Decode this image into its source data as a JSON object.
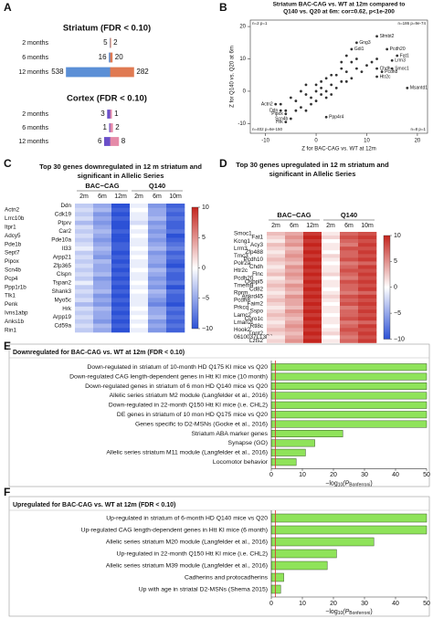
{
  "panel_labels": [
    "A",
    "B",
    "C",
    "D",
    "E",
    "F"
  ],
  "chart_data": [
    {
      "type": "diverging_bar",
      "title": "Striatum (FDR < 0.10)",
      "categories": [
        "2 months",
        "6 months",
        "12 months"
      ],
      "series": [
        {
          "color": "#5b8fd6",
          "values": [
            5,
            16,
            538
          ]
        },
        {
          "color": "#e07a52",
          "values": [
            2,
            20,
            282
          ]
        }
      ]
    },
    {
      "type": "diverging_bar",
      "title": "Cortex (FDR < 0.10)",
      "categories": [
        "2 months",
        "6 months",
        "12 months"
      ],
      "series": [
        {
          "color": "#6a4fc9",
          "values": [
            3,
            1,
            6
          ]
        },
        {
          "color": "#e58aa8",
          "values": [
            1,
            2,
            8
          ]
        }
      ]
    },
    {
      "type": "scatter",
      "title": "Striatum BAC-CAG vs. WT at 12m compared to",
      "subtitle": "Q140 vs. Q20 at 6m:   cor=0.62, p<1e-200",
      "x_label": "Z for BAC-CAG vs. WT at 12m",
      "y_label": "Z for Q140 vs. Q20 at 6m",
      "xlim": [
        -13,
        22
      ],
      "ylim": [
        -13,
        22
      ],
      "xticks": [
        -10,
        0,
        10,
        20
      ],
      "yticks": [
        -10,
        0,
        10,
        20
      ],
      "color": "#333333",
      "annotations": [
        "n=2  p=1",
        "n=186  p=9e-74",
        "n=402  p=6e-150",
        "n=8  p=1"
      ],
      "series": [
        {
          "x": [
            -4,
            -3,
            -2,
            -1,
            0,
            1,
            2,
            3,
            4,
            5,
            6,
            7,
            8,
            -5,
            -6,
            2,
            3,
            1,
            -2,
            -3,
            4,
            5,
            6,
            7,
            9,
            10,
            -1,
            0,
            2,
            3,
            -4,
            1,
            0,
            8,
            11,
            -7,
            5,
            6,
            -2,
            12
          ],
          "y": [
            -3,
            -5,
            -1,
            -2,
            0,
            1,
            0,
            2,
            5,
            3,
            6,
            4,
            7,
            -2,
            -6,
            4,
            -1,
            3,
            2,
            0,
            1,
            7,
            3,
            9,
            6,
            8,
            -4,
            -3,
            -2,
            5,
            -6,
            -1,
            2,
            10,
            9,
            -4,
            9,
            11,
            -6,
            10
          ]
        },
        {
          "x": [
            12,
            14,
            8,
            7,
            16,
            15,
            12,
            15,
            13,
            12,
            18,
            -8,
            -7,
            -6,
            -5,
            -6,
            2
          ],
          "y": [
            17,
            13,
            15,
            13,
            11,
            9.5,
            7,
            7,
            6,
            4.5,
            1,
            -4,
            -6,
            -7,
            -8.5,
            -9.5,
            -8
          ],
          "labels": [
            "Sfmbt2",
            "Pcdh20",
            "Gng3",
            "Gdi1",
            "Fat1",
            "Lrrn3",
            "Chdh",
            "Smoc1",
            "Pcdh8",
            "Htr2c",
            "Msantd1",
            "Actn2",
            "Ddn",
            "Pipox",
            "Scn4b",
            "Hrk",
            "Ppp4r4"
          ]
        }
      ]
    },
    {
      "type": "heatmap",
      "title": [
        "Top 30 genes downregulated in 12 m striatum and",
        "significant in Allelic Series"
      ],
      "groups": [
        "BAC−CAG",
        "Q140"
      ],
      "columns": [
        "2m",
        "6m",
        "12m",
        "2m",
        "6m",
        "10m"
      ],
      "rows": [
        "Ddn",
        "Actn2",
        "Cdk19",
        "Lrrc10b",
        "Ptprv",
        "Itpr1",
        "Car2",
        "Adcy5",
        "Pde10a",
        "Pde1b",
        "Il33",
        "Sept7",
        "Arpp21",
        "Pipox",
        "Zfp365",
        "Scn4b",
        "Clspn",
        "Pcp4",
        "Tspan2",
        "Ppp1r1b",
        "Shank3",
        "Tlk1",
        "Myo5c",
        "Penk",
        "Hrk",
        "Ivns1abp",
        "Arpp19",
        "Anks1b",
        "Cd59a",
        "Rin1"
      ],
      "values": [
        [
          -3,
          -5,
          -10,
          -1,
          -6,
          -9
        ],
        [
          -2,
          -4,
          -9,
          0,
          -5,
          -8
        ],
        [
          -3,
          -6,
          -10,
          -1,
          -5,
          -9
        ],
        [
          -2,
          -5,
          -9,
          -1,
          -4,
          -8
        ],
        [
          -4,
          -6,
          -10,
          -2,
          -6,
          -9
        ],
        [
          -2,
          -5,
          -10,
          0,
          -5,
          -9
        ],
        [
          -3,
          -4,
          -9,
          -1,
          -6,
          -8
        ],
        [
          -2,
          -5,
          -10,
          0,
          -5,
          -10
        ],
        [
          -3,
          -6,
          -10,
          -1,
          -6,
          -9
        ],
        [
          -2,
          -5,
          -9,
          -1,
          -5,
          -8
        ],
        [
          -1,
          -4,
          -9,
          0,
          -4,
          -7
        ],
        [
          -3,
          -5,
          -10,
          -1,
          -6,
          -9
        ],
        [
          -2,
          -6,
          -9,
          0,
          -5,
          -8
        ],
        [
          -3,
          -4,
          -10,
          -1,
          -5,
          -9
        ],
        [
          -2,
          -5,
          -9,
          -1,
          -6,
          -10
        ],
        [
          -3,
          -5,
          -10,
          0,
          -4,
          -8
        ],
        [
          -2,
          -4,
          -9,
          -1,
          -5,
          -9
        ],
        [
          -3,
          -6,
          -10,
          -1,
          -6,
          -9
        ],
        [
          -1,
          -5,
          -9,
          0,
          -5,
          -8
        ],
        [
          -3,
          -5,
          -10,
          -1,
          -6,
          -10
        ],
        [
          -2,
          -4,
          -9,
          0,
          -4,
          -8
        ],
        [
          -3,
          -6,
          -10,
          -1,
          -5,
          -9
        ],
        [
          -2,
          -5,
          -9,
          -1,
          -6,
          -9
        ],
        [
          -4,
          -6,
          -10,
          -1,
          -7,
          -10
        ],
        [
          -2,
          -4,
          -9,
          0,
          -5,
          -8
        ],
        [
          -3,
          -5,
          -10,
          -1,
          -5,
          -9
        ],
        [
          -2,
          -5,
          -9,
          0,
          -4,
          -8
        ],
        [
          -3,
          -6,
          -10,
          -1,
          -6,
          -9
        ],
        [
          -2,
          -4,
          -9,
          0,
          -5,
          -8
        ],
        [
          -3,
          -5,
          -10,
          -1,
          -6,
          -9
        ]
      ],
      "clim": [
        -10,
        10
      ],
      "cticks": [
        10,
        5,
        0,
        {
          "value": -5,
          "label": "−5"
        },
        {
          "value": -10,
          "label": "−10"
        }
      ],
      "colors": [
        "#2c51d6",
        "#ffffff",
        "#c4241d"
      ]
    },
    {
      "type": "heatmap",
      "title": [
        "Top 30 genes upregulated in 12 m striatum and",
        "significant in Allelic Series"
      ],
      "groups": [
        "BAC−CAG",
        "Q140"
      ],
      "columns": [
        "2m",
        "6m",
        "12m",
        "2m",
        "6m",
        "10m"
      ],
      "rows": [
        "Smoc1",
        "Fat1",
        "Kcng1",
        "Acy3",
        "Lrrn3",
        "Zfp488",
        "Tmc3",
        "Pcdh10",
        "Polr2a",
        "Chdh",
        "Htr2c",
        "Flnc",
        "Pcdh20",
        "Osbpl5",
        "Tmem9",
        "Cd82",
        "Rprm",
        "Ankrd45",
        "Pcdh8",
        "Faim2",
        "Prkcq",
        "Sspo",
        "Lamc2",
        "Coro1c",
        "Lman2l",
        "Rtl8c",
        "Hook2",
        "Tnnt2",
        "0610037L13Rik",
        "Lzts2"
      ],
      "values": [
        [
          3,
          4,
          9,
          1,
          7,
          8
        ],
        [
          2,
          5,
          10,
          2,
          8,
          9
        ],
        [
          1,
          4,
          9,
          0,
          7,
          8
        ],
        [
          3,
          5,
          10,
          1,
          6,
          9
        ],
        [
          2,
          3,
          9,
          1,
          8,
          8
        ],
        [
          1,
          4,
          10,
          0,
          7,
          9
        ],
        [
          2,
          5,
          9,
          2,
          7,
          8
        ],
        [
          3,
          4,
          10,
          1,
          8,
          9
        ],
        [
          2,
          3,
          9,
          0,
          6,
          7
        ],
        [
          1,
          5,
          10,
          1,
          7,
          9
        ],
        [
          2,
          4,
          9,
          1,
          8,
          8
        ],
        [
          3,
          5,
          10,
          2,
          7,
          9
        ],
        [
          1,
          4,
          9,
          0,
          6,
          8
        ],
        [
          2,
          3,
          10,
          1,
          8,
          9
        ],
        [
          3,
          5,
          9,
          1,
          7,
          8
        ],
        [
          2,
          4,
          10,
          0,
          7,
          9
        ],
        [
          1,
          3,
          9,
          1,
          6,
          7
        ],
        [
          2,
          5,
          10,
          2,
          8,
          9
        ],
        [
          3,
          4,
          9,
          1,
          7,
          8
        ],
        [
          2,
          4,
          10,
          0,
          8,
          9
        ],
        [
          1,
          3,
          9,
          1,
          6,
          8
        ],
        [
          2,
          5,
          10,
          1,
          7,
          9
        ],
        [
          3,
          4,
          9,
          0,
          7,
          8
        ],
        [
          2,
          3,
          10,
          1,
          8,
          9
        ],
        [
          1,
          4,
          9,
          1,
          6,
          7
        ],
        [
          2,
          5,
          10,
          0,
          7,
          9
        ],
        [
          3,
          4,
          9,
          1,
          8,
          8
        ],
        [
          2,
          3,
          10,
          2,
          7,
          9
        ],
        [
          1,
          4,
          9,
          0,
          6,
          8
        ],
        [
          2,
          5,
          10,
          1,
          7,
          9
        ]
      ],
      "clim": [
        -10,
        10
      ],
      "cticks": [
        10,
        5,
        0,
        {
          "value": -5,
          "label": "−5"
        },
        {
          "value": -10,
          "label": "−10"
        }
      ],
      "colors": [
        "#2c51d6",
        "#ffffff",
        "#c4241d"
      ]
    },
    {
      "type": "hbar",
      "title": "Downregulated for BAC-CAG vs. WT at 12m (FDR < 0.10)",
      "categories": [
        "Down-regulated in striatum of 10-month HD Q175 KI mice vs Q20",
        "Down-regulated CAG length-dependent genes in Htt KI mice (10 month)",
        "Down-regulated genes in striatum of 6 mon HD Q140 mice vs Q20",
        "Allelic series striatum M2 module (Langfelder et al., 2016)",
        "Down-regulated in 22-month Q150 Htt KI mice (i.e. CHL2)",
        "DE genes in striatum of 10 mon HD Q175 mice vs Q20",
        "Genes specific to D2-MSNs (Gocke et al., 2016)",
        "Striatum ABA marker genes",
        "Synapse (GO)",
        "Allelic series striatum M11 module (Langfelder et al., 2016)",
        "Locomotor behavior"
      ],
      "values": [
        50,
        50,
        50,
        50,
        50,
        50,
        50,
        23,
        14,
        11,
        8
      ],
      "color": "#8fe35a",
      "xlim": [
        0,
        50
      ],
      "xticks": [
        0,
        10,
        20,
        30,
        40,
        50
      ],
      "threshold": 1.3,
      "threshold_color": "#e03030",
      "x_label_parts": [
        "−log",
        "10",
        "(P",
        "Bonferroni",
        ")"
      ]
    },
    {
      "type": "hbar",
      "title": "Upregulated for BAC-CAG vs. WT at 12m (FDR < 0.10)",
      "categories": [
        "Up-regulated in striatum of 6-month HD Q140 mice vs Q20",
        "Up-regulated CAG length-dependent genes in Htt KI mice (6 month)",
        "Allelic series striatum M20 module (Langfelder et al., 2016)",
        "Up-regulated in 22-month Q150 Htt KI mice (i.e. CHL2)",
        "Allelic series striatum M39 module (Langfelder et al., 2016)",
        "Cadherins and protocadherins",
        "Up with age in striatal D2-MSNs (Shema 2015)"
      ],
      "values": [
        50,
        50,
        33,
        21,
        18,
        4,
        3
      ],
      "color": "#8fe35a",
      "xlim": [
        0,
        50
      ],
      "xticks": [
        0,
        10,
        20,
        30,
        40,
        50
      ],
      "threshold": 1.3,
      "threshold_color": "#e03030",
      "x_label_parts": [
        "−log",
        "10",
        "(P",
        "Bonferroni",
        ")"
      ]
    }
  ]
}
